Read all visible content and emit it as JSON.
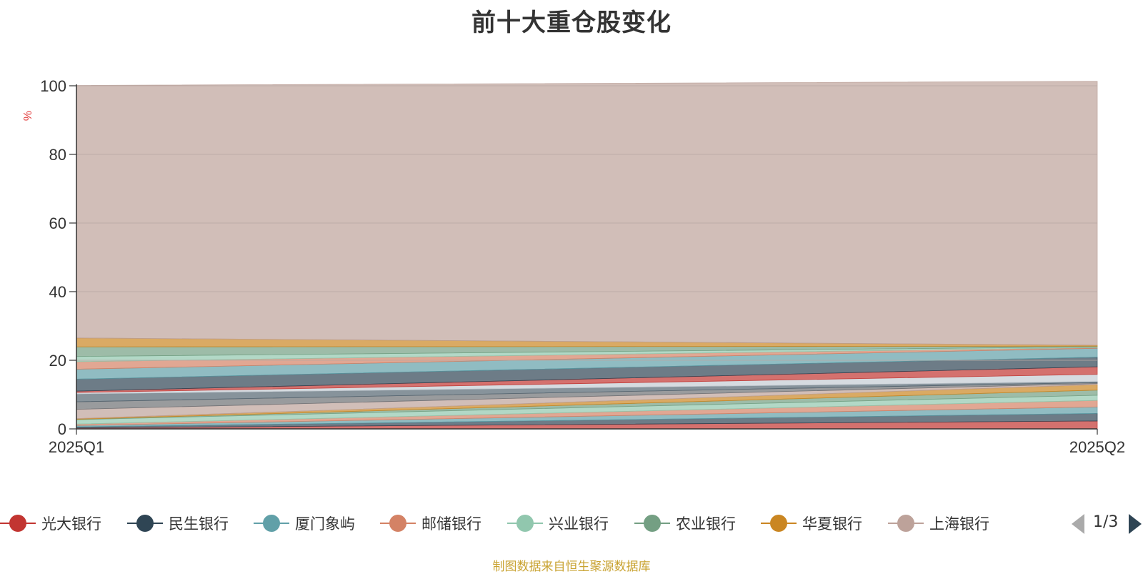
{
  "chart_data": {
    "type": "area",
    "stacked": true,
    "title": "前十大重仓股变化",
    "ylabel": "%",
    "xlabel": "",
    "ylim": [
      0,
      100
    ],
    "yticks": [
      "0",
      "20",
      "40",
      "60",
      "80",
      "100"
    ],
    "ytick_values": [
      0,
      20,
      40,
      60,
      80,
      100
    ],
    "categories": [
      "2025Q1",
      "2025Q2"
    ],
    "grid": true,
    "legend_position": "bottom",
    "series": [
      {
        "name": "光大银行",
        "color": "#c23531",
        "values": [
          0.3,
          2.3
        ]
      },
      {
        "name": "民生银行",
        "color": "#2f4554",
        "values": [
          0.3,
          2.2
        ]
      },
      {
        "name": "厦门象屿",
        "color": "#61a0a8",
        "values": [
          0.4,
          1.9
        ]
      },
      {
        "name": "邮储银行",
        "color": "#d48265",
        "values": [
          0.4,
          1.9
        ]
      },
      {
        "name": "兴业银行",
        "color": "#91c7ae",
        "values": [
          1.3,
          1.5
        ]
      },
      {
        "name": "农业银行",
        "color": "#749f83",
        "values": [
          0.1,
          1.5
        ]
      },
      {
        "name": "华夏银行",
        "color": "#ca8622",
        "values": [
          0.2,
          1.6
        ]
      },
      {
        "name": "上海银行",
        "color": "#bda29a",
        "values": [
          2.7,
          0.3
        ]
      },
      {
        "name": "",
        "color": "#6e7074",
        "values": [
          2.2,
          0.3
        ]
      },
      {
        "name": "",
        "color": "#546570",
        "values": [
          2.3,
          0.3
        ]
      },
      {
        "name": "",
        "color": "#c4ccd3",
        "values": [
          0.4,
          2.1
        ]
      },
      {
        "name": "",
        "color": "#c23531",
        "values": [
          0.4,
          2.2
        ]
      },
      {
        "name": "",
        "color": "#2f4554",
        "values": [
          3.5,
          2.8
        ]
      },
      {
        "name": "",
        "color": "#61a0a8",
        "values": [
          2.9,
          2.6
        ]
      },
      {
        "name": "",
        "color": "#d48265",
        "values": [
          2.2,
          0.2
        ]
      },
      {
        "name": "",
        "color": "#91c7ae",
        "values": [
          1.5,
          0.2
        ]
      },
      {
        "name": "",
        "color": "#749f83",
        "values": [
          2.8,
          0.2
        ]
      },
      {
        "name": "",
        "color": "#ca8622",
        "values": [
          2.6,
          0.3
        ]
      },
      {
        "name": "",
        "color": "#bda29a",
        "values": [
          73.6,
          76.9
        ]
      }
    ]
  },
  "legend": {
    "page": "1/3"
  },
  "source_note": "制图数据来自恒生聚源数据库"
}
